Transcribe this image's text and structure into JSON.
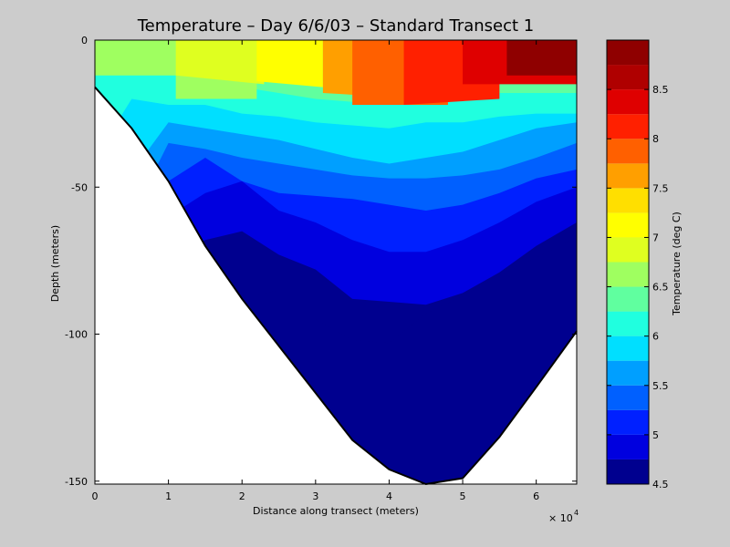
{
  "chart_data": {
    "type": "filled_contour",
    "title": "Temperature – Day 6/6/03 – Standard Transect 1",
    "xlabel": "Distance along transect (meters)",
    "ylabel": "Depth (meters)",
    "x_multiplier_label": "× 10",
    "x_multiplier_exponent": "4",
    "xlim": [
      0,
      65500
    ],
    "ylim": [
      -151,
      0
    ],
    "x_ticks": [
      {
        "value": 0,
        "label": "0"
      },
      {
        "value": 10000,
        "label": "1"
      },
      {
        "value": 20000,
        "label": "2"
      },
      {
        "value": 30000,
        "label": "3"
      },
      {
        "value": 40000,
        "label": "4"
      },
      {
        "value": 50000,
        "label": "5"
      },
      {
        "value": 60000,
        "label": "6"
      }
    ],
    "y_ticks": [
      {
        "value": 0,
        "label": "0"
      },
      {
        "value": -50,
        "label": "-50"
      },
      {
        "value": -100,
        "label": "-100"
      },
      {
        "value": -150,
        "label": "-150"
      }
    ],
    "bathymetry": {
      "x": [
        0,
        5000,
        10000,
        15000,
        20000,
        25000,
        30000,
        35000,
        40000,
        45000,
        50000,
        55000,
        60000,
        65500
      ],
      "depth": [
        -16,
        -30,
        -48,
        -70,
        -88,
        -104,
        -120,
        -136,
        -146,
        -151,
        -149,
        -135,
        -118,
        -99
      ]
    },
    "colorbar": {
      "label": "Temperature (deg C)",
      "levels": [
        4.5,
        4.75,
        5,
        5.25,
        5.5,
        5.75,
        6,
        6.25,
        6.5,
        6.75,
        7,
        7.25,
        7.5,
        7.75,
        8,
        8.25,
        8.5,
        8.75,
        9
      ],
      "colors": [
        "#00008f",
        "#0000df",
        "#0020ff",
        "#0060ff",
        "#009fff",
        "#00dfff",
        "#20ffdf",
        "#60ff9f",
        "#9fff60",
        "#dfff20",
        "#ffff00",
        "#ffdf00",
        "#ff9f00",
        "#ff6000",
        "#ff2000",
        "#df0000",
        "#af0000",
        "#8f0000"
      ],
      "tick_labels": [
        {
          "value": 4.5,
          "label": "4.5"
        },
        {
          "value": 5,
          "label": "5"
        },
        {
          "value": 5.5,
          "label": "5.5"
        },
        {
          "value": 6,
          "label": "6"
        },
        {
          "value": 6.5,
          "label": "6.5"
        },
        {
          "value": 7,
          "label": "7"
        },
        {
          "value": 7.5,
          "label": "7.5"
        },
        {
          "value": 8,
          "label": "8"
        },
        {
          "value": 8.5,
          "label": "8.5"
        }
      ]
    },
    "field_layers": [
      {
        "temp_range": [
          6.25,
          6.5
        ],
        "x": [
          0,
          5000,
          10000,
          15000,
          20000,
          25000,
          30000,
          35000,
          40000,
          45000,
          50000,
          55000,
          60000,
          65500
        ],
        "upper_depth": [
          -5,
          -5,
          -5,
          -10,
          -16,
          -18,
          -20,
          -21,
          -22,
          -20,
          -20,
          -18,
          -18,
          -18
        ]
      },
      {
        "temp_range": [
          6.0,
          6.25
        ],
        "x": [
          0,
          5000,
          10000,
          15000,
          20000,
          25000,
          30000,
          35000,
          40000,
          45000,
          50000,
          55000,
          60000,
          65500
        ],
        "upper_depth": [
          -40,
          -20,
          -22,
          -22,
          -25,
          -26,
          -28,
          -29,
          -30,
          -28,
          -28,
          -26,
          -25,
          -25
        ]
      },
      {
        "temp_range": [
          5.75,
          6.0
        ],
        "x": [
          0,
          5000,
          10000,
          15000,
          20000,
          25000,
          30000,
          35000,
          40000,
          45000,
          50000,
          55000,
          60000,
          65500
        ],
        "upper_depth": [
          -50,
          -45,
          -28,
          -30,
          -32,
          -34,
          -37,
          -40,
          -42,
          -40,
          -38,
          -34,
          -30,
          -28
        ]
      },
      {
        "temp_range": [
          5.5,
          5.75
        ],
        "x": [
          0,
          5000,
          10000,
          15000,
          20000,
          25000,
          30000,
          35000,
          40000,
          45000,
          50000,
          55000,
          60000,
          65500
        ],
        "upper_depth": [
          -60,
          -60,
          -35,
          -37,
          -40,
          -42,
          -44,
          -46,
          -47,
          -47,
          -46,
          -44,
          -40,
          -35
        ]
      },
      {
        "temp_range": [
          5.25,
          5.5
        ],
        "x": [
          0,
          5000,
          10000,
          15000,
          20000,
          25000,
          30000,
          35000,
          40000,
          45000,
          50000,
          55000,
          60000,
          65500
        ],
        "upper_depth": [
          -70,
          -70,
          -48,
          -40,
          -48,
          -52,
          -53,
          -54,
          -56,
          -58,
          -56,
          -52,
          -47,
          -44
        ]
      },
      {
        "temp_range": [
          5.0,
          5.25
        ],
        "x": [
          0,
          5000,
          10000,
          15000,
          20000,
          25000,
          30000,
          35000,
          40000,
          45000,
          50000,
          55000,
          60000,
          65500
        ],
        "upper_depth": [
          -80,
          -80,
          -60,
          -52,
          -48,
          -58,
          -62,
          -68,
          -72,
          -72,
          -68,
          -62,
          -55,
          -50
        ]
      },
      {
        "temp_range": [
          4.75,
          5.0
        ],
        "x": [
          0,
          5000,
          10000,
          15000,
          20000,
          25000,
          30000,
          35000,
          40000,
          45000,
          50000,
          55000,
          60000,
          65500
        ],
        "upper_depth": [
          -95,
          -95,
          -75,
          -68,
          -65,
          -73,
          -78,
          -88,
          -89,
          -90,
          -86,
          -79,
          -70,
          -62
        ]
      },
      {
        "temp_range": [
          4.5,
          4.75
        ],
        "x": [
          0,
          5000,
          10000,
          15000,
          20000,
          25000,
          30000,
          35000,
          40000,
          45000,
          50000,
          55000,
          60000,
          65500
        ],
        "upper_depth": [
          -110,
          -110,
          -100,
          -90,
          -88,
          -85,
          -95,
          -102,
          -103,
          -93,
          -87,
          -80,
          -74,
          -67
        ]
      }
    ],
    "surface_layers": [
      {
        "temp_range": [
          7.0,
          7.25
        ],
        "x": [
          0,
          4000,
          6000,
          8000
        ],
        "depth_bottom": [
          -5,
          -5,
          -5,
          -5
        ],
        "note": ""
      },
      {
        "temp_range": [
          6.5,
          6.75
        ],
        "x": [
          0,
          11000,
          11000,
          22000
        ],
        "depth_bottom": [
          -12,
          -12,
          -20,
          -20
        ],
        "note": ""
      },
      {
        "temp_range": [
          6.75,
          7.0
        ],
        "x": [
          11000,
          23000
        ],
        "depth_bottom": [
          -12,
          -15
        ],
        "note": ""
      },
      {
        "temp_range": [
          7.0,
          7.25
        ],
        "x": [
          22000,
          31000
        ],
        "depth_bottom": [
          -14,
          -16
        ],
        "note": ""
      },
      {
        "temp_range": [
          7.25,
          7.5
        ],
        "x": [
          31000,
          40000
        ],
        "depth_bottom": [
          -15,
          -18
        ],
        "note": ""
      },
      {
        "temp_range": [
          7.5,
          7.75
        ],
        "x": [
          31000,
          45000
        ],
        "depth_bottom": [
          -18,
          -20
        ],
        "note": ""
      },
      {
        "temp_range": [
          7.75,
          8.0
        ],
        "x": [
          35000,
          48000
        ],
        "depth_bottom": [
          -22,
          -22
        ],
        "note": ""
      },
      {
        "temp_range": [
          8.0,
          8.25
        ],
        "x": [
          42000,
          55000
        ],
        "depth_bottom": [
          -22,
          -20
        ],
        "note": ""
      },
      {
        "temp_range": [
          8.25,
          8.5
        ],
        "x": [
          50000,
          65500
        ],
        "depth_bottom": [
          -15,
          -15
        ],
        "note": ""
      },
      {
        "temp_range": [
          8.75,
          9.0
        ],
        "x": [
          56000,
          65500
        ],
        "depth_bottom": [
          -12,
          -12
        ],
        "note": ""
      }
    ]
  }
}
